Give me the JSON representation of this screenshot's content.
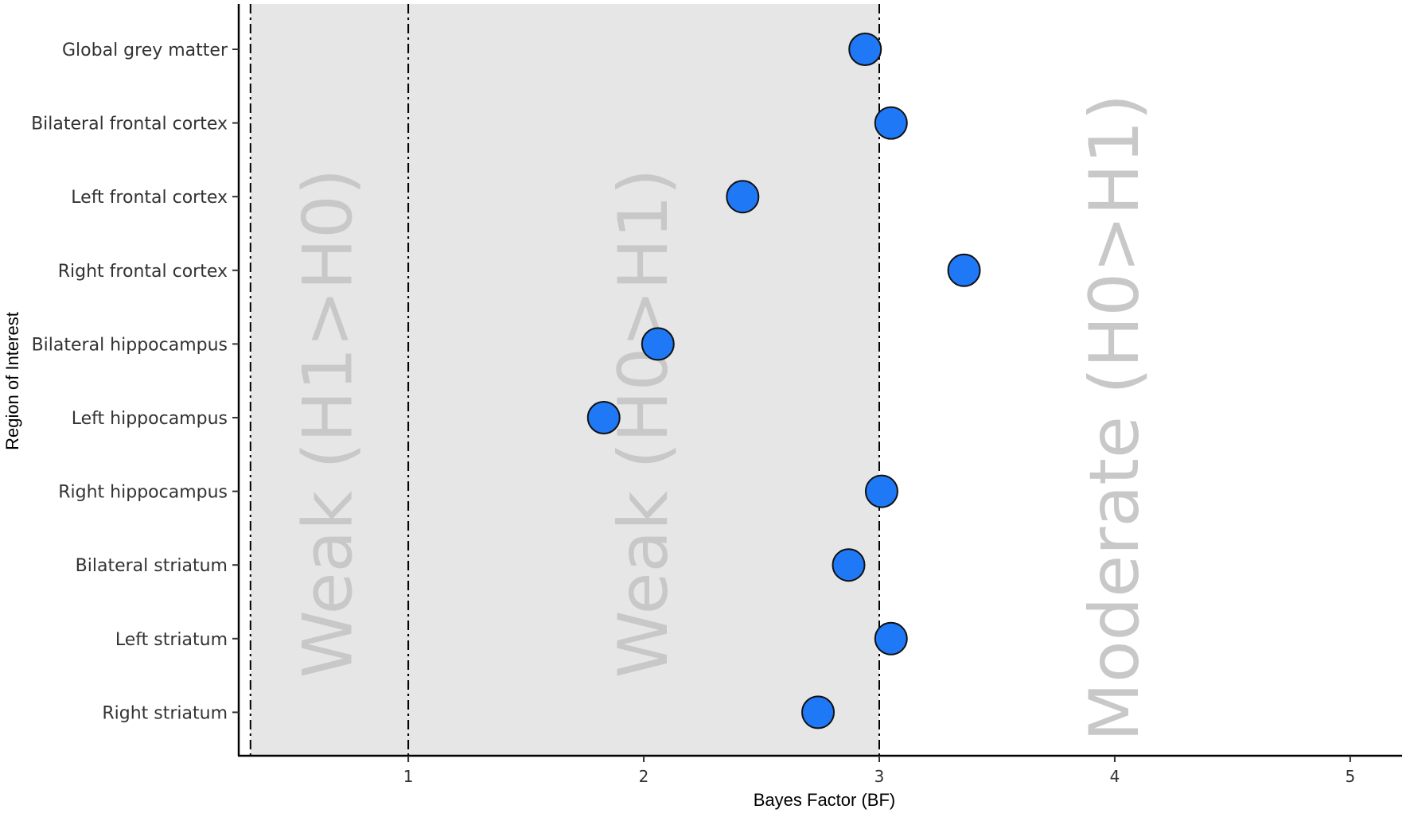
{
  "chart_data": {
    "type": "scatter",
    "xlabel": "Bayes Factor (BF)",
    "ylabel": "Region of Interest",
    "xlim": [
      0.28,
      5.22
    ],
    "x_ticks": [
      "1",
      "2",
      "3",
      "4",
      "5"
    ],
    "x_tick_values": [
      1,
      2,
      3,
      4,
      5
    ],
    "categories": [
      "Global grey matter",
      "Bilateral frontal cortex",
      "Left frontal cortex",
      "Right frontal cortex",
      "Bilateral hippocampus",
      "Left hippocampus",
      "Right hippocampus",
      "Bilateral striatum",
      "Left striatum",
      "Right striatum"
    ],
    "values": [
      2.94,
      3.05,
      2.42,
      3.36,
      2.06,
      1.83,
      3.01,
      2.87,
      3.05,
      2.74
    ],
    "reference_lines": [
      0.33,
      1,
      3
    ],
    "shaded_range": [
      0.33,
      3
    ],
    "region_labels": [
      {
        "text": "Weak (H1>H0)",
        "x": 0.66
      },
      {
        "text": "Weak (H0>H1)",
        "x": 2.0
      },
      {
        "text": "Moderate (H0>H1)",
        "x": 4.0
      }
    ],
    "point_color": "#1f78f5",
    "shade_color": "#e6e6e6",
    "grid": false,
    "legend": "none"
  }
}
